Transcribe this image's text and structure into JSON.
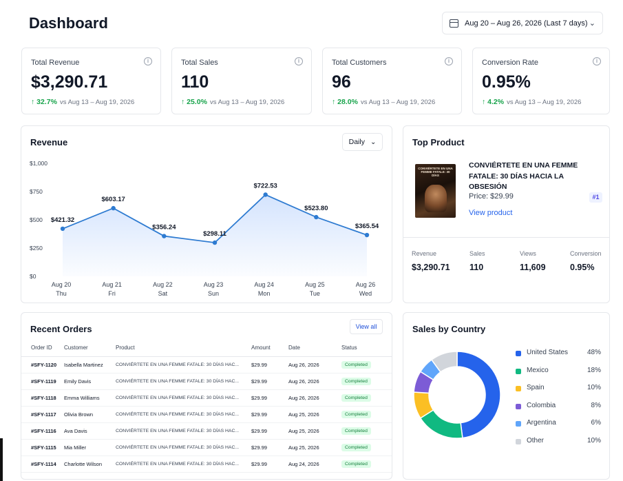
{
  "header": {
    "title": "Dashboard",
    "date_range": "Aug 20 – Aug 26, 2026 (Last 7 days)"
  },
  "kpis": [
    {
      "label": "Total Revenue",
      "value": "$3,290.71",
      "change": "↑ 32.7%",
      "compare": "vs Aug 13 – Aug 19, 2026"
    },
    {
      "label": "Total Sales",
      "value": "110",
      "change": "↑ 25.0%",
      "compare": "vs Aug 13 – Aug 19, 2026"
    },
    {
      "label": "Total Customers",
      "value": "96",
      "change": "↑ 28.0%",
      "compare": "vs Aug 13 – Aug 19, 2026"
    },
    {
      "label": "Conversion Rate",
      "value": "0.95%",
      "change": "↑ 4.2%",
      "compare": "vs Aug 13 – Aug 19, 2026"
    }
  ],
  "revenue": {
    "title": "Revenue",
    "period": "Daily"
  },
  "chart_data": {
    "type": "area",
    "title": "Revenue",
    "categories": [
      "Aug 20",
      "Aug 21",
      "Aug 22",
      "Aug 23",
      "Aug 24",
      "Aug 25",
      "Aug 26"
    ],
    "weekdays": [
      "Thu",
      "Fri",
      "Sat",
      "Sun",
      "Mon",
      "Tue",
      "Wed"
    ],
    "values": [
      421.32,
      603.17,
      356.24,
      298.11,
      722.53,
      523.8,
      365.54
    ],
    "value_labels": [
      "$421.32",
      "$603.17",
      "$356.24",
      "$298.11",
      "$722.53",
      "$523.80",
      "$365.54"
    ],
    "ylim": [
      0,
      1000
    ],
    "yticks": [
      0,
      250,
      500,
      750,
      1000
    ],
    "ytick_labels": [
      "$0",
      "$250",
      "$500",
      "$750",
      "$1,000"
    ],
    "grid": false,
    "color": "#2e7bd1"
  },
  "top_product": {
    "title": "Top Product",
    "cover_text": "CONVIÉRTETE EN UNA FEMME FATALE: 30 DÍAS",
    "name": "CONVIÉRTETE EN UNA FEMME FATALE: 30 DÍAS HACIA LA OBSESIÓN",
    "price": "Price: $29.99",
    "rank": "#1",
    "link": "View product",
    "stats": [
      {
        "label": "Revenue",
        "value": "$3,290.71"
      },
      {
        "label": "Sales",
        "value": "110"
      },
      {
        "label": "Views",
        "value": "11,609"
      },
      {
        "label": "Conversion",
        "value": "0.95%"
      }
    ]
  },
  "orders": {
    "title": "Recent Orders",
    "view_all": "View all",
    "columns": [
      "Order ID",
      "Customer",
      "Product",
      "Amount",
      "Date",
      "Status"
    ],
    "rows": [
      {
        "id": "#SFY-1120",
        "customer": "Isabella Martinez",
        "product": "CONVIÉRTETE EN UNA FEMME FATALE: 30 DÍAS HAC...",
        "amount": "$29.99",
        "date": "Aug 26, 2026",
        "status": "Completed"
      },
      {
        "id": "#SFY-1119",
        "customer": "Emily Davis",
        "product": "CONVIÉRTETE EN UNA FEMME FATALE: 30 DÍAS HAC...",
        "amount": "$29.99",
        "date": "Aug 26, 2026",
        "status": "Completed"
      },
      {
        "id": "#SFY-1118",
        "customer": "Emma Williams",
        "product": "CONVIÉRTETE EN UNA FEMME FATALE: 30 DÍAS HAC...",
        "amount": "$29.99",
        "date": "Aug 26, 2026",
        "status": "Completed"
      },
      {
        "id": "#SFY-1117",
        "customer": "Olivia Brown",
        "product": "CONVIÉRTETE EN UNA FEMME FATALE: 30 DÍAS HAC...",
        "amount": "$29.99",
        "date": "Aug 25, 2026",
        "status": "Completed"
      },
      {
        "id": "#SFY-1116",
        "customer": "Ava Davis",
        "product": "CONVIÉRTETE EN UNA FEMME FATALE: 30 DÍAS HAC...",
        "amount": "$29.99",
        "date": "Aug 25, 2026",
        "status": "Completed"
      },
      {
        "id": "#SFY-1115",
        "customer": "Mia Miller",
        "product": "CONVIÉRTETE EN UNA FEMME FATALE: 30 DÍAS HAC...",
        "amount": "$29.99",
        "date": "Aug 25, 2026",
        "status": "Completed"
      },
      {
        "id": "#SFY-1114",
        "customer": "Charlotte Wilson",
        "product": "CONVIÉRTETE EN UNA FEMME FATALE: 30 DÍAS HAC...",
        "amount": "$29.99",
        "date": "Aug 24, 2026",
        "status": "Completed"
      }
    ]
  },
  "countries": {
    "title": "Sales by Country",
    "items": [
      {
        "name": "United States",
        "percent": "48%",
        "value": 48,
        "color": "#2563eb"
      },
      {
        "name": "Mexico",
        "percent": "18%",
        "value": 18,
        "color": "#10b981"
      },
      {
        "name": "Spain",
        "percent": "10%",
        "value": 10,
        "color": "#fbbf24"
      },
      {
        "name": "Colombia",
        "percent": "8%",
        "value": 8,
        "color": "#7c5cd6"
      },
      {
        "name": "Argentina",
        "percent": "6%",
        "value": 6,
        "color": "#60a5fa"
      },
      {
        "name": "Other",
        "percent": "10%",
        "value": 10,
        "color": "#d1d5db"
      }
    ]
  }
}
